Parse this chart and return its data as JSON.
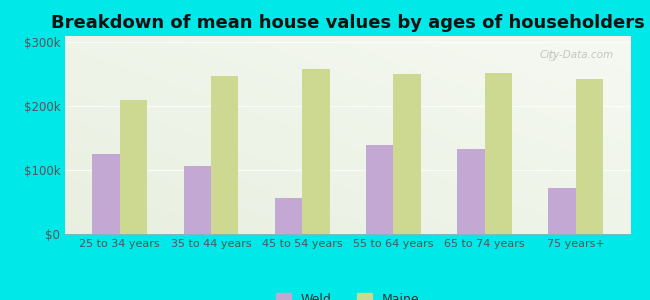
{
  "title": "Breakdown of mean house values by ages of householders",
  "categories": [
    "25 to 34 years",
    "35 to 44 years",
    "45 to 54 years",
    "55 to 64 years",
    "65 to 74 years",
    "75 years+"
  ],
  "weld_values": [
    125000,
    107000,
    57000,
    140000,
    133000,
    72000
  ],
  "maine_values": [
    210000,
    248000,
    258000,
    250000,
    252000,
    243000
  ],
  "weld_color": "#c4a8d4",
  "maine_color": "#cdd890",
  "background_color": "#00e8e8",
  "plot_bg_color": "#e8f0e0",
  "ylabel_ticks": [
    "$0",
    "$100k",
    "$200k",
    "$300k"
  ],
  "ytick_values": [
    0,
    100000,
    200000,
    300000
  ],
  "ylim": [
    0,
    310000
  ],
  "legend_labels": [
    "Weld",
    "Maine"
  ],
  "title_fontsize": 13,
  "watermark": "City-Data.com"
}
